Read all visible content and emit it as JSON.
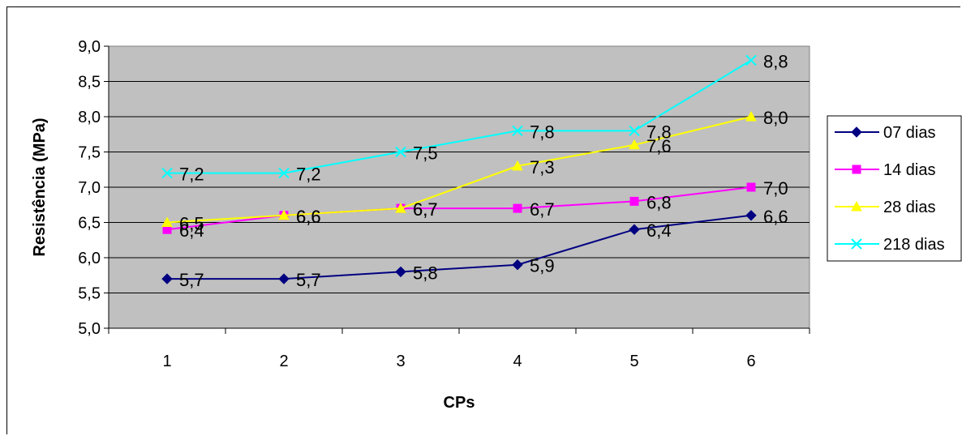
{
  "chart_data": {
    "type": "line",
    "title": "",
    "xlabel": "CPs",
    "ylabel": "Resistência (MPa)",
    "categories": [
      "1",
      "2",
      "3",
      "4",
      "5",
      "6"
    ],
    "ylim": [
      5.0,
      9.0
    ],
    "ytick_step": 0.5,
    "yticks": [
      "5,0",
      "5,5",
      "6,0",
      "6,5",
      "7,0",
      "7,5",
      "8,0",
      "8,5",
      "9,0"
    ],
    "grid": "horizontal",
    "plot_background": "#c0c0c0",
    "legend_position": "right",
    "series": [
      {
        "name": "07 dias",
        "color": "#000080",
        "marker": "diamond",
        "values": [
          5.7,
          5.7,
          5.8,
          5.9,
          6.4,
          6.6
        ],
        "labels": [
          "5,7",
          "5,7",
          "5,8",
          "5,9",
          "6,4",
          "6,6"
        ]
      },
      {
        "name": "14 dias",
        "color": "#ff00ff",
        "marker": "square",
        "values": [
          6.4,
          6.6,
          6.7,
          6.7,
          6.8,
          7.0
        ],
        "labels": [
          "6,4",
          "6,6",
          "6,7",
          "6,7",
          "6,8",
          "7,0"
        ]
      },
      {
        "name": "28 dias",
        "color": "#ffff00",
        "marker": "triangle",
        "values": [
          6.5,
          6.6,
          6.7,
          7.3,
          7.6,
          8.0
        ],
        "labels": [
          "6,5",
          "6,6",
          "6,7",
          "7,3",
          "7,6",
          "8,0"
        ]
      },
      {
        "name": "218 dias",
        "color": "#00ffff",
        "marker": "x",
        "values": [
          7.2,
          7.2,
          7.5,
          7.8,
          7.8,
          8.8
        ],
        "labels": [
          "7,2",
          "7,2",
          "7,5",
          "7,8",
          "7,8",
          "8,8"
        ]
      }
    ]
  }
}
